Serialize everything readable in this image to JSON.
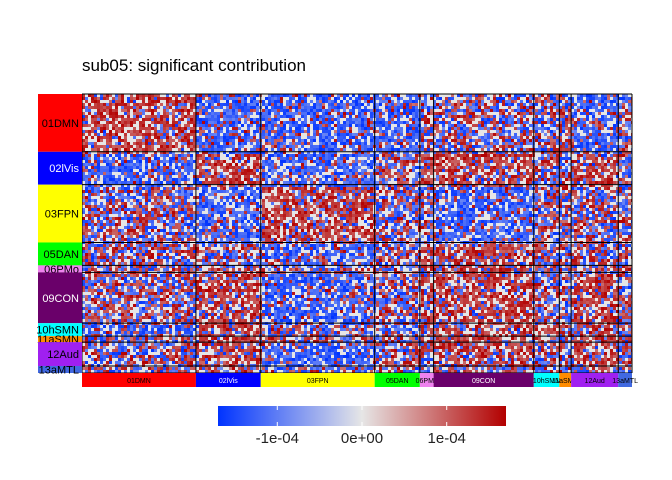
{
  "chart_data": {
    "type": "heatmap",
    "title": "sub05: significant contribution",
    "networks": [
      {
        "label": "01DMN",
        "color": "#FF0000",
        "text_color": "#000000",
        "nodes": 58
      },
      {
        "label": "02lVis",
        "color": "#0000FF",
        "text_color": "#FFFFFF",
        "nodes": 33
      },
      {
        "label": "03FPN",
        "color": "#FFFF00",
        "text_color": "#000000",
        "nodes": 58
      },
      {
        "label": "05DAN",
        "color": "#00FF00",
        "text_color": "#000000",
        "nodes": 23
      },
      {
        "label": "06PMo",
        "color": "#EE82EE",
        "text_color": "#000000",
        "nodes": 7
      },
      {
        "label": "09CON",
        "color": "#6A006A",
        "text_color": "#FFFFFF",
        "nodes": 51
      },
      {
        "label": "10hSMN",
        "color": "#00FFFF",
        "text_color": "#000000",
        "nodes": 13
      },
      {
        "label": "11aSMN",
        "color": "#FF8C00",
        "text_color": "#000000",
        "nodes": 6
      },
      {
        "label": "12Aud",
        "color": "#A020F0",
        "text_color": "#000000",
        "nodes": 24
      },
      {
        "label": "13aMTL",
        "color": "#4169E1",
        "text_color": "#000000",
        "nodes": 7
      }
    ],
    "row_labels": [
      "01DMN",
      "02lVis",
      "03FPN",
      "05DAN",
      "06PMo",
      "09CON",
      "10hSMN",
      "11aSMN",
      "12Aud",
      "13aMTL"
    ],
    "column_labels": [
      "01DMN",
      "02lVis",
      "03FPN",
      "05DAN",
      "06PMo",
      "09CON",
      "10hSMN",
      "11aSMN",
      "12Aud",
      "13aMTL"
    ],
    "block_pattern_mean_sign": [
      [
        1,
        -1,
        -1,
        -1,
        0,
        0,
        0,
        0,
        -1,
        0
      ],
      [
        -1,
        1,
        -1,
        0,
        1,
        1,
        0,
        0,
        1,
        0
      ],
      [
        0,
        -1,
        1,
        0,
        0,
        -1,
        0,
        0,
        0,
        0
      ],
      [
        0,
        0,
        -1,
        0,
        1,
        1,
        0,
        0,
        0,
        0
      ],
      [
        0,
        1,
        0,
        0,
        0,
        1,
        0,
        0,
        0,
        0
      ],
      [
        0,
        1,
        -1,
        0,
        1,
        1,
        0,
        0,
        1,
        0
      ],
      [
        -1,
        1,
        0,
        0,
        0,
        1,
        1,
        0,
        1,
        0
      ],
      [
        0,
        1,
        0,
        0,
        0,
        1,
        0,
        0,
        1,
        0
      ],
      [
        0,
        1,
        -1,
        0,
        0,
        1,
        0,
        0,
        1,
        0
      ],
      [
        0,
        0,
        0,
        0,
        0,
        0,
        0,
        0,
        0,
        0
      ]
    ],
    "color_scale": {
      "low": "#0033FF",
      "mid": "#E6E6E6",
      "high": "#B30000",
      "ticks": [
        -0.0001,
        0,
        0.0001
      ],
      "tick_labels": [
        "-1e-04",
        "0e+00",
        "1e-04"
      ],
      "range": [
        -0.00017,
        0.00017
      ]
    },
    "legend_position": "bottom"
  }
}
